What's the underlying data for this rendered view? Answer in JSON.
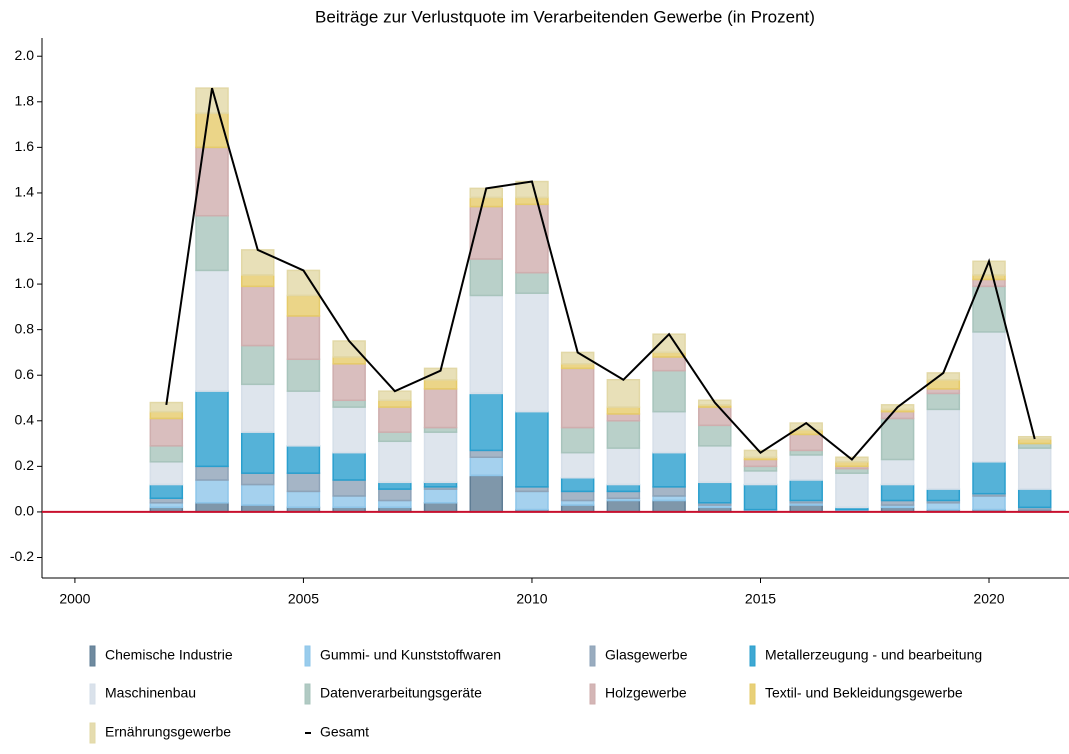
{
  "chart_data": {
    "type": "stacked_bar_line",
    "title": "Beiträge zur Verlustquote im Verarbeitenden Gewerbe (in Prozent)",
    "x": [
      2002,
      2003,
      2004,
      2005,
      2006,
      2007,
      2008,
      2009,
      2010,
      2011,
      2012,
      2013,
      2014,
      2015,
      2016,
      2017,
      2018,
      2019,
      2020,
      2021
    ],
    "series": [
      {
        "name": "Chemische Industrie",
        "color": "#5f7d95",
        "values": [
          0.02,
          0.04,
          0.03,
          0.02,
          0.02,
          0.02,
          0.04,
          0.16,
          0.01,
          0.03,
          0.05,
          0.05,
          0.02,
          0.0,
          0.03,
          0.0,
          0.02,
          0.01,
          0.01,
          0.01
        ]
      },
      {
        "name": "Gummi- und Kunststoffwaren",
        "color": "#8ec6ea",
        "values": [
          0.02,
          0.1,
          0.09,
          0.07,
          0.05,
          0.03,
          0.06,
          0.08,
          0.08,
          0.02,
          0.01,
          0.02,
          0.01,
          0.01,
          0.01,
          0.01,
          0.01,
          0.03,
          0.06,
          0.0
        ]
      },
      {
        "name": "Glasgewerbe",
        "color": "#8ea3b8",
        "values": [
          0.02,
          0.06,
          0.05,
          0.08,
          0.07,
          0.05,
          0.01,
          0.03,
          0.02,
          0.04,
          0.03,
          0.04,
          0.01,
          0.0,
          0.01,
          0.0,
          0.02,
          0.01,
          0.01,
          0.01
        ]
      },
      {
        "name": "Metallerzeugung - und bearbeitung",
        "color": "#2a9fce",
        "values": [
          0.06,
          0.33,
          0.18,
          0.12,
          0.12,
          0.03,
          0.02,
          0.25,
          0.33,
          0.06,
          0.03,
          0.15,
          0.09,
          0.11,
          0.09,
          0.01,
          0.07,
          0.05,
          0.14,
          0.08
        ]
      },
      {
        "name": "Maschinenbau",
        "color": "#d6dfe9",
        "values": [
          0.1,
          0.53,
          0.21,
          0.24,
          0.2,
          0.18,
          0.22,
          0.43,
          0.52,
          0.11,
          0.16,
          0.18,
          0.16,
          0.06,
          0.11,
          0.15,
          0.11,
          0.35,
          0.57,
          0.18
        ]
      },
      {
        "name": "Datenverarbeitungsgeräte",
        "color": "#a8c4bc",
        "values": [
          0.07,
          0.24,
          0.17,
          0.14,
          0.03,
          0.04,
          0.02,
          0.16,
          0.09,
          0.11,
          0.12,
          0.18,
          0.09,
          0.02,
          0.02,
          0.02,
          0.18,
          0.07,
          0.2,
          0.02
        ]
      },
      {
        "name": "Holzgewerbe",
        "color": "#cfaeae",
        "values": [
          0.12,
          0.3,
          0.26,
          0.19,
          0.16,
          0.11,
          0.17,
          0.23,
          0.3,
          0.26,
          0.03,
          0.06,
          0.08,
          0.03,
          0.07,
          0.01,
          0.03,
          0.02,
          0.03,
          0.0
        ]
      },
      {
        "name": "Textil- und Bekleidungsgewerbe",
        "color": "#e6cb6a",
        "values": [
          0.03,
          0.15,
          0.05,
          0.09,
          0.03,
          0.03,
          0.04,
          0.04,
          0.03,
          0.02,
          0.03,
          0.02,
          0.01,
          0.01,
          0.02,
          0.02,
          0.01,
          0.04,
          0.02,
          0.02
        ]
      },
      {
        "name": "Ernährungsgewerbe",
        "color": "#e2d8a6",
        "values": [
          0.04,
          0.11,
          0.11,
          0.11,
          0.07,
          0.04,
          0.05,
          0.04,
          0.07,
          0.05,
          0.12,
          0.08,
          0.02,
          0.03,
          0.03,
          0.02,
          0.02,
          0.03,
          0.06,
          0.01
        ]
      }
    ],
    "line": {
      "name": "Gesamt",
      "color": "#000000",
      "values": [
        0.47,
        1.86,
        1.15,
        1.06,
        0.75,
        0.53,
        0.62,
        1.42,
        1.45,
        0.7,
        0.58,
        0.78,
        0.48,
        0.26,
        0.39,
        0.23,
        0.46,
        0.61,
        1.1,
        0.32
      ]
    },
    "zero_line_color": "#c8102e",
    "xlim": [
      1999.28,
      2021.75
    ],
    "xticks": [
      2000,
      2005,
      2010,
      2015,
      2020
    ],
    "ylim": [
      -0.29,
      2.08
    ],
    "yticks": [
      -0.2,
      {
        "value": 0,
        "label": "0.0"
      },
      0.2,
      0.4,
      0.6,
      0.8,
      {
        "value": 1,
        "label": "1.0"
      },
      1.2,
      1.4,
      1.6,
      1.8,
      {
        "value": 2,
        "label": "2.0"
      }
    ]
  }
}
